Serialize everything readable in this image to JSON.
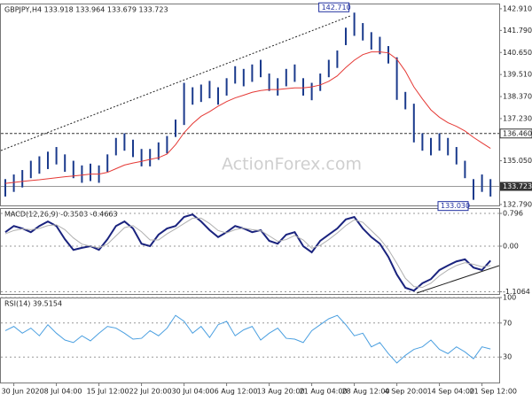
{
  "chart_data": [
    {
      "type": "ohlc",
      "title": "GBPJPY,H4  133.918 133.964 133.679 133.723",
      "watermark": "ActionForex.com",
      "categories": [
        null,
        "30 Jun 2020",
        null,
        null,
        null,
        null,
        "8 Jul 04:00",
        null,
        null,
        null,
        null,
        "15 Jul 12:00",
        null,
        null,
        null,
        null,
        "22 Jul 20:00",
        null,
        null,
        null,
        null,
        "30 Jul 04:00",
        null,
        null,
        null,
        null,
        "6 Aug 12:00",
        null,
        null,
        null,
        null,
        "13 Aug 20:00",
        null,
        null,
        null,
        null,
        "21 Aug 04:00",
        null,
        null,
        null,
        null,
        "28 Aug 12:00",
        null,
        null,
        null,
        null,
        "4 Sep 20:00",
        null,
        null,
        null,
        null,
        "14 Sep 04:00",
        null,
        null,
        null,
        null,
        "21 Sep 12:00",
        null
      ],
      "high": [
        134.1,
        134.34,
        134.57,
        135.05,
        135.28,
        135.52,
        135.76,
        135.38,
        135.05,
        134.81,
        134.9,
        134.81,
        135.38,
        136.23,
        136.47,
        136.14,
        135.66,
        135.66,
        136.0,
        136.33,
        137.18,
        139.08,
        138.85,
        138.99,
        139.18,
        138.85,
        139.32,
        139.94,
        139.8,
        140.03,
        140.27,
        139.56,
        139.32,
        139.8,
        140.03,
        139.32,
        139.08,
        139.56,
        140.27,
        140.75,
        141.93,
        142.71,
        142.17,
        141.7,
        141.46,
        140.98,
        140.4,
        138.61,
        138.0,
        136.47,
        136.23,
        136.47,
        136.23,
        135.76,
        135.05,
        134.1,
        134.34,
        134.1
      ],
      "low": [
        133.2,
        133.44,
        133.67,
        134.15,
        134.38,
        134.62,
        134.86,
        134.48,
        134.15,
        133.91,
        134.0,
        133.91,
        134.48,
        135.33,
        135.57,
        135.24,
        134.76,
        134.76,
        135.1,
        135.43,
        136.28,
        136.9,
        137.95,
        138.09,
        138.28,
        137.95,
        138.42,
        139.04,
        138.9,
        139.13,
        139.37,
        138.66,
        138.42,
        138.9,
        139.13,
        138.42,
        138.18,
        138.66,
        139.37,
        139.85,
        141.03,
        141.51,
        141.27,
        140.8,
        140.56,
        140.08,
        138.2,
        137.71,
        136.0,
        135.57,
        135.33,
        135.57,
        135.33,
        134.86,
        134.15,
        133.03,
        133.44,
        133.2
      ],
      "bar_color": "#1a3a8c",
      "ma": {
        "color": "#e53935",
        "values": [
          133.88,
          133.93,
          133.98,
          134.03,
          134.07,
          134.12,
          134.17,
          134.22,
          134.26,
          134.31,
          134.36,
          134.36,
          134.45,
          134.64,
          134.83,
          134.93,
          135.02,
          135.12,
          135.21,
          135.4,
          135.88,
          136.5,
          136.97,
          137.35,
          137.59,
          137.87,
          138.11,
          138.3,
          138.44,
          138.59,
          138.68,
          138.73,
          138.73,
          138.78,
          138.82,
          138.82,
          138.87,
          138.97,
          139.16,
          139.44,
          139.87,
          140.25,
          140.54,
          140.68,
          140.68,
          140.63,
          140.3,
          139.68,
          138.87,
          138.25,
          137.68,
          137.3,
          137.02,
          136.83,
          136.59,
          136.26,
          135.97,
          135.69
        ]
      },
      "ylim": [
        132.74,
        143.18
      ],
      "yticks": [
        {
          "value": 142.91,
          "label": "142.910"
        },
        {
          "value": 141.79,
          "label": "141.790"
        },
        {
          "value": 140.65,
          "label": "140.650"
        },
        {
          "value": 139.51,
          "label": "139.510"
        },
        {
          "value": 138.37,
          "label": "138.370"
        },
        {
          "value": 137.23,
          "label": "137.230"
        },
        {
          "value": 135.05,
          "label": "135.050"
        },
        {
          "value": 132.79,
          "label": "132.790"
        }
      ],
      "level": {
        "value": 136.46,
        "label": "136.460"
      },
      "last": {
        "value": 133.723,
        "label": "133.723"
      },
      "annotations": [
        {
          "value": 142.71,
          "label": "142.710",
          "index": 41
        },
        {
          "value": 133.03,
          "label": "133.030",
          "index": 55
        }
      ]
    },
    {
      "type": "line",
      "title": "MACD(12,26,9) -0.3503 -0.4663",
      "series": [
        {
          "color": "#1a237e",
          "width": 2,
          "values": [
            0.34,
            0.49,
            0.43,
            0.34,
            0.49,
            0.6,
            0.49,
            0.17,
            -0.09,
            -0.04,
            0.0,
            -0.09,
            0.17,
            0.49,
            0.6,
            0.43,
            0.06,
            0.0,
            0.28,
            0.43,
            0.49,
            0.71,
            0.77,
            0.6,
            0.39,
            0.22,
            0.34,
            0.49,
            0.43,
            0.34,
            0.39,
            0.13,
            0.06,
            0.28,
            0.34,
            0.0,
            -0.15,
            0.13,
            0.28,
            0.43,
            0.65,
            0.71,
            0.43,
            0.22,
            0.06,
            -0.26,
            -0.69,
            -1.01,
            -1.08,
            -0.9,
            -0.8,
            -0.58,
            -0.47,
            -0.37,
            -0.32,
            -0.52,
            -0.58,
            -0.35
          ]
        },
        {
          "color": "#b0b0b0",
          "width": 1,
          "values": [
            0.3,
            0.38,
            0.42,
            0.4,
            0.43,
            0.5,
            0.52,
            0.4,
            0.2,
            0.05,
            0.0,
            -0.04,
            0.05,
            0.25,
            0.45,
            0.5,
            0.35,
            0.15,
            0.15,
            0.3,
            0.42,
            0.55,
            0.68,
            0.68,
            0.55,
            0.38,
            0.32,
            0.4,
            0.44,
            0.4,
            0.38,
            0.25,
            0.12,
            0.16,
            0.26,
            0.15,
            -0.05,
            0.02,
            0.16,
            0.32,
            0.5,
            0.64,
            0.58,
            0.38,
            0.18,
            -0.08,
            -0.42,
            -0.78,
            -0.98,
            -1.0,
            -0.9,
            -0.72,
            -0.58,
            -0.47,
            -0.4,
            -0.44,
            -0.5,
            -0.47
          ]
        }
      ],
      "ylim": [
        -1.161,
        0.925
      ],
      "yticks": [
        0.796,
        {
          "value": 0,
          "label": "0.00"
        },
        -1.1064
      ]
    },
    {
      "type": "line",
      "title": "RSI(14) 39.5154",
      "series": [
        {
          "color": "#4a9fe0",
          "width": 1,
          "values": [
            61,
            66,
            58,
            64,
            55,
            68,
            58,
            50,
            47,
            55,
            49,
            58,
            66,
            64,
            58,
            51,
            52,
            61,
            55,
            64,
            79,
            72,
            58,
            66,
            53,
            68,
            72,
            55,
            62,
            66,
            50,
            58,
            64,
            52,
            51,
            47,
            61,
            68,
            75,
            79,
            68,
            55,
            58,
            42,
            47,
            34,
            23,
            32,
            39,
            42,
            50,
            39,
            34,
            42,
            36,
            28,
            42,
            39.5
          ]
        }
      ],
      "ylim": [
        0,
        100
      ],
      "yticks": [
        100,
        70,
        30
      ]
    }
  ]
}
